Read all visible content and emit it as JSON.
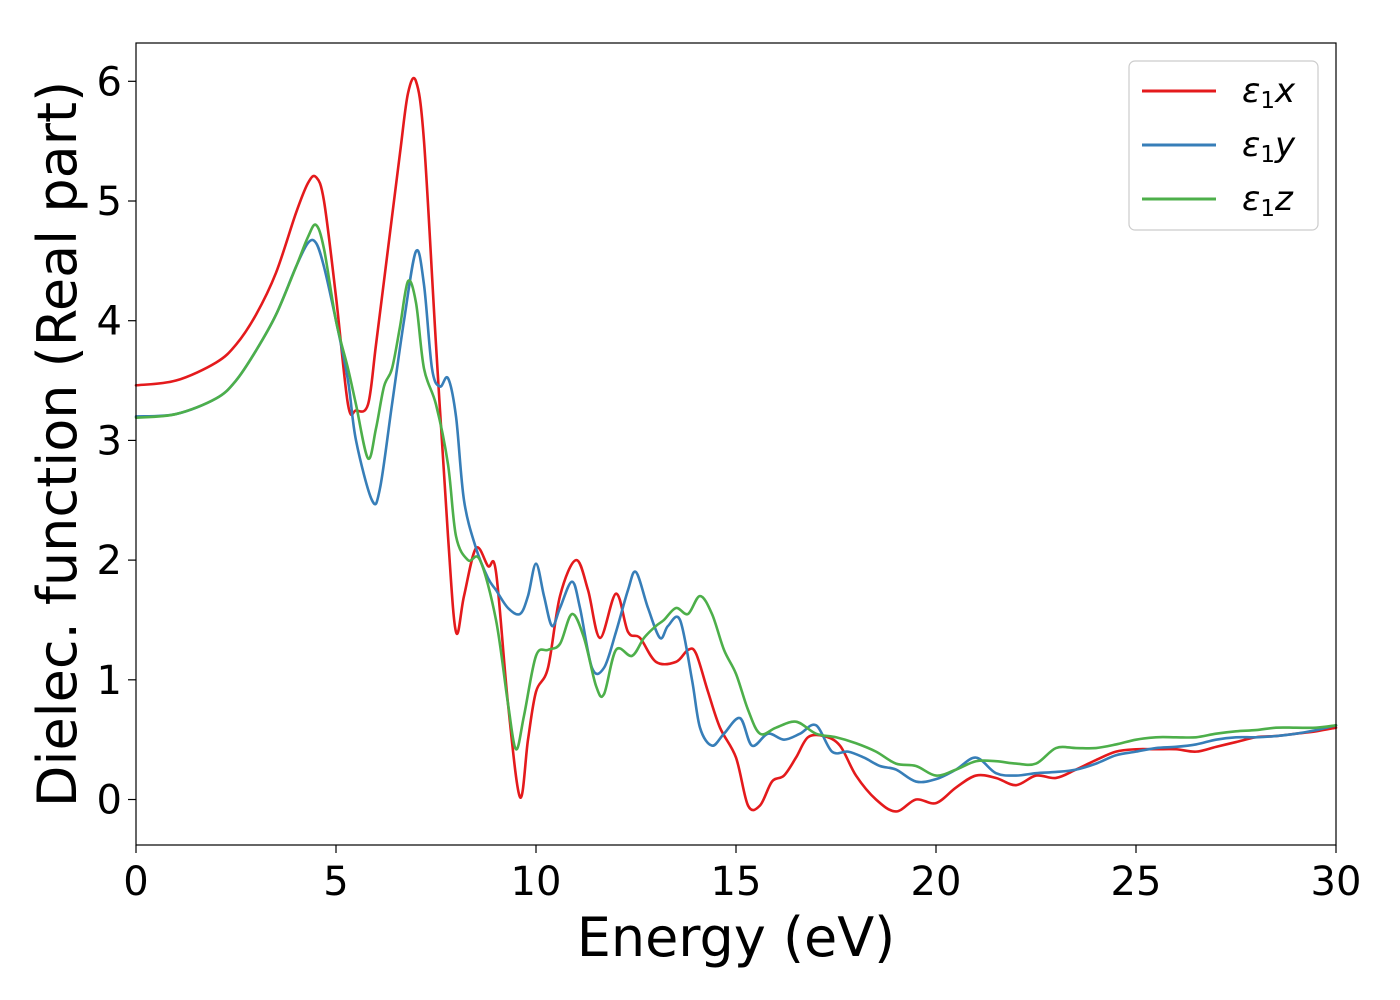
{
  "chart_data": {
    "type": "line",
    "title": "",
    "xlabel": "Energy (eV)",
    "ylabel": "Dielec. function (Real part)",
    "xlim": [
      0,
      30
    ],
    "ylim": [
      -0.38,
      6.32
    ],
    "xticks": [
      0,
      5,
      10,
      15,
      20,
      25,
      30
    ],
    "yticks": [
      0,
      1,
      2,
      3,
      4,
      5,
      6
    ],
    "grid": false,
    "legend_position": "top-right",
    "series": [
      {
        "name": "ε₁x",
        "legend": {
          "base": "ε",
          "sub": "1",
          "suffix": "x"
        },
        "color": "#e41a1c",
        "x": [
          0,
          1,
          2,
          2.5,
          3,
          3.5,
          4,
          4.3,
          4.5,
          4.7,
          5,
          5.3,
          5.5,
          5.8,
          6,
          6.3,
          6.6,
          6.8,
          7,
          7.2,
          7.5,
          7.8,
          8,
          8.2,
          8.5,
          8.8,
          9,
          9.3,
          9.6,
          9.8,
          10,
          10.3,
          10.6,
          11,
          11.3,
          11.6,
          12,
          12.3,
          12.6,
          13,
          13.5,
          13.8,
          14,
          14.3,
          14.6,
          15,
          15.3,
          15.6,
          15.9,
          16.2,
          16.5,
          16.8,
          17.2,
          17.6,
          18,
          18.5,
          19,
          19.5,
          20,
          20.5,
          21,
          21.5,
          22,
          22.5,
          23,
          23.5,
          24,
          24.5,
          25,
          25.5,
          26,
          26.5,
          27,
          27.5,
          28,
          28.5,
          29,
          29.5,
          30
        ],
        "y": [
          3.46,
          3.5,
          3.65,
          3.8,
          4.05,
          4.4,
          4.9,
          5.15,
          5.2,
          5.0,
          4.2,
          3.3,
          3.25,
          3.3,
          3.8,
          4.6,
          5.4,
          5.9,
          6.0,
          5.5,
          3.8,
          2.2,
          1.4,
          1.7,
          2.1,
          1.95,
          1.9,
          0.8,
          0.02,
          0.5,
          0.9,
          1.1,
          1.7,
          2.0,
          1.75,
          1.35,
          1.72,
          1.4,
          1.35,
          1.15,
          1.15,
          1.25,
          1.22,
          0.9,
          0.6,
          0.35,
          -0.05,
          -0.05,
          0.15,
          0.2,
          0.35,
          0.52,
          0.53,
          0.45,
          0.2,
          0.0,
          -0.1,
          0.0,
          -0.03,
          0.1,
          0.2,
          0.18,
          0.12,
          0.2,
          0.18,
          0.25,
          0.33,
          0.4,
          0.42,
          0.42,
          0.42,
          0.4,
          0.44,
          0.48,
          0.52,
          0.53,
          0.55,
          0.57,
          0.6
        ]
      },
      {
        "name": "ε₁y",
        "legend": {
          "base": "ε",
          "sub": "1",
          "suffix": "y"
        },
        "color": "#377eb8",
        "x": [
          0,
          1,
          2,
          2.5,
          3,
          3.5,
          4,
          4.3,
          4.5,
          4.7,
          5,
          5.3,
          5.5,
          5.9,
          6.1,
          6.4,
          6.7,
          7,
          7.2,
          7.4,
          7.6,
          7.8,
          8,
          8.2,
          8.5,
          8.8,
          9,
          9.3,
          9.6,
          9.8,
          10,
          10.2,
          10.4,
          10.6,
          10.9,
          11.1,
          11.4,
          11.7,
          12,
          12.3,
          12.5,
          12.8,
          13.1,
          13.3,
          13.6,
          13.9,
          14.1,
          14.4,
          14.7,
          15.1,
          15.4,
          15.8,
          16.2,
          16.6,
          17,
          17.4,
          17.8,
          18.2,
          18.6,
          19,
          19.5,
          20,
          20.5,
          21,
          21.5,
          22,
          22.5,
          23,
          23.5,
          24,
          24.5,
          25,
          25.5,
          26,
          26.5,
          27,
          27.5,
          28,
          28.5,
          29,
          29.5,
          30
        ],
        "y": [
          3.2,
          3.22,
          3.35,
          3.5,
          3.75,
          4.05,
          4.45,
          4.65,
          4.65,
          4.45,
          4.0,
          3.5,
          3.0,
          2.5,
          2.6,
          3.3,
          4.0,
          4.58,
          4.3,
          3.6,
          3.45,
          3.52,
          3.2,
          2.5,
          2.1,
          1.85,
          1.75,
          1.6,
          1.55,
          1.7,
          1.97,
          1.7,
          1.45,
          1.6,
          1.82,
          1.6,
          1.1,
          1.1,
          1.4,
          1.75,
          1.9,
          1.6,
          1.35,
          1.45,
          1.5,
          1.0,
          0.6,
          0.45,
          0.55,
          0.68,
          0.45,
          0.55,
          0.5,
          0.55,
          0.62,
          0.4,
          0.4,
          0.35,
          0.28,
          0.25,
          0.15,
          0.17,
          0.25,
          0.35,
          0.22,
          0.2,
          0.22,
          0.23,
          0.25,
          0.3,
          0.37,
          0.4,
          0.43,
          0.44,
          0.46,
          0.5,
          0.52,
          0.52,
          0.53,
          0.55,
          0.58,
          0.62
        ]
      },
      {
        "name": "ε₁z",
        "legend": {
          "base": "ε",
          "sub": "1",
          "suffix": "z"
        },
        "color": "#4daf4a",
        "x": [
          0,
          1,
          2,
          2.5,
          3,
          3.5,
          4,
          4.3,
          4.5,
          4.7,
          5,
          5.3,
          5.5,
          5.8,
          6,
          6.2,
          6.4,
          6.6,
          6.8,
          7,
          7.2,
          7.5,
          7.8,
          8,
          8.3,
          8.6,
          9,
          9.3,
          9.5,
          9.7,
          10,
          10.3,
          10.6,
          10.9,
          11.2,
          11.5,
          11.7,
          12,
          12.4,
          12.7,
          13,
          13.2,
          13.5,
          13.8,
          14.1,
          14.4,
          14.7,
          15,
          15.3,
          15.6,
          16,
          16.5,
          17,
          17.5,
          18,
          18.5,
          19,
          19.5,
          20,
          20.5,
          21,
          21.5,
          22,
          22.5,
          23,
          23.5,
          24,
          24.5,
          25,
          25.5,
          26,
          26.5,
          27,
          27.5,
          28,
          28.5,
          29,
          29.5,
          30
        ],
        "y": [
          3.19,
          3.22,
          3.35,
          3.5,
          3.75,
          4.05,
          4.45,
          4.7,
          4.8,
          4.6,
          4.0,
          3.6,
          3.3,
          2.85,
          3.1,
          3.45,
          3.6,
          3.95,
          4.33,
          4.15,
          3.6,
          3.3,
          2.8,
          2.2,
          2.0,
          2.0,
          1.5,
          0.8,
          0.42,
          0.7,
          1.2,
          1.25,
          1.3,
          1.55,
          1.35,
          0.95,
          0.88,
          1.25,
          1.2,
          1.35,
          1.45,
          1.5,
          1.6,
          1.55,
          1.7,
          1.55,
          1.25,
          1.05,
          0.75,
          0.55,
          0.6,
          0.65,
          0.55,
          0.52,
          0.47,
          0.4,
          0.3,
          0.28,
          0.2,
          0.25,
          0.32,
          0.32,
          0.3,
          0.3,
          0.43,
          0.43,
          0.43,
          0.46,
          0.5,
          0.52,
          0.52,
          0.52,
          0.55,
          0.57,
          0.58,
          0.6,
          0.6,
          0.6,
          0.62
        ]
      }
    ]
  }
}
